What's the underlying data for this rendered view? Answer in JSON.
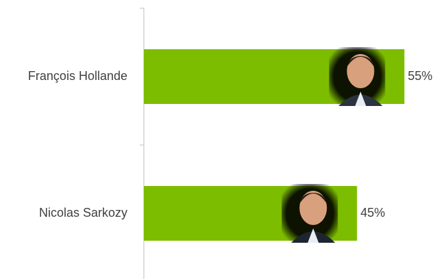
{
  "chart_data": {
    "type": "hbar",
    "categories": [
      "François Hollande",
      "Nicolas Sarkozy"
    ],
    "values": [
      55,
      45
    ],
    "value_labels": [
      "55%",
      "45%"
    ],
    "color": "#7dbd00",
    "xlim": [
      0,
      60
    ]
  }
}
